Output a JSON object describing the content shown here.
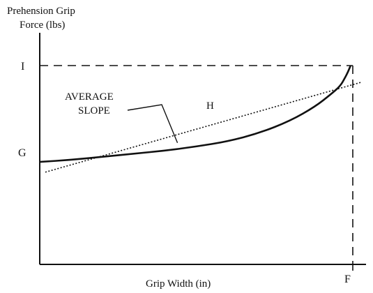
{
  "chart_data": {
    "type": "line",
    "title": "",
    "ylabel_lines": [
      "Prehension Grip",
      "Force (lbs)"
    ],
    "xlabel": "Grip Width (in)",
    "x_ticks": [
      {
        "label": "F",
        "x": 1.0
      }
    ],
    "y_ticks": [
      {
        "label": "G",
        "y": 0.5
      },
      {
        "label": "I",
        "y": 0.97
      }
    ],
    "xlim": [
      0,
      1.0
    ],
    "ylim": [
      0,
      1.2
    ],
    "grid": false,
    "legend": "none",
    "series": [
      {
        "style": "solid",
        "points": [
          [
            0.0,
            0.5
          ],
          [
            0.1,
            0.51
          ],
          [
            0.2,
            0.525
          ],
          [
            0.3,
            0.54
          ],
          [
            0.4,
            0.555
          ],
          [
            0.5,
            0.575
          ],
          [
            0.6,
            0.6
          ],
          [
            0.7,
            0.64
          ],
          [
            0.8,
            0.7
          ],
          [
            0.88,
            0.77
          ],
          [
            0.93,
            0.83
          ],
          [
            0.96,
            0.87
          ],
          [
            0.975,
            0.91
          ],
          [
            0.985,
            0.94
          ],
          [
            0.993,
            0.97
          ]
        ]
      },
      {
        "style": "dotted",
        "points": [
          [
            0.0,
            0.45
          ],
          [
            1.03,
            0.89
          ]
        ]
      }
    ],
    "reference_lines": [
      {
        "orientation": "horizontal",
        "y": 0.97,
        "x_from": 0.0,
        "x_to": 1.0,
        "style": "dashed"
      },
      {
        "orientation": "vertical",
        "x": 1.0,
        "y_from": 0.97,
        "y_to": 0.0,
        "style": "dashed"
      }
    ],
    "annotations": [
      {
        "name": "average-slope",
        "lines": [
          "AVERAGE",
          "SLOPE"
        ],
        "points_to": [
          0.44,
          0.6
        ]
      },
      {
        "name": "point-h",
        "text": "H",
        "at": [
          0.5,
          0.66
        ]
      }
    ],
    "colors": {
      "ink": "#111111",
      "background": "#ffffff"
    }
  }
}
